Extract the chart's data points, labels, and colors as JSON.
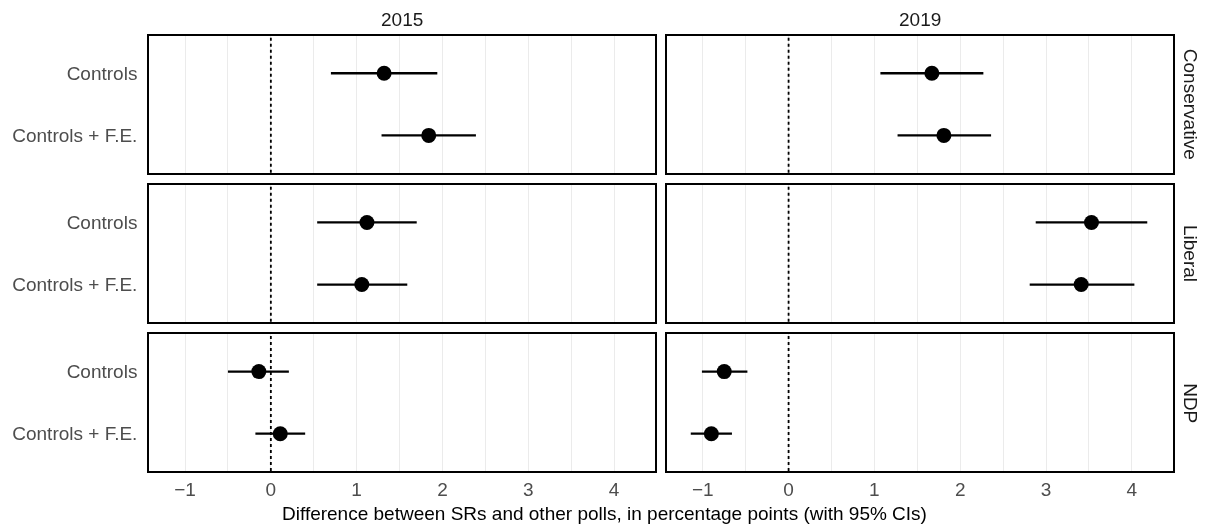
{
  "chart_data": [
    {
      "type": "scatter",
      "title": "2015",
      "categories": [
        "Controls",
        "Controls + F.E."
      ],
      "values": [
        1.32,
        1.84
      ],
      "errors": [
        [
          0.7,
          1.94
        ],
        [
          1.29,
          2.39
        ]
      ],
      "color": "#000000",
      "orientation": "horizontal",
      "marker": "circle",
      "xlim": [
        -1.42,
        4.48
      ],
      "xticks": [
        -1,
        -0.5,
        0,
        0.5,
        1,
        1.5,
        2,
        2.5,
        3,
        3.5,
        4
      ],
      "grid": "x",
      "ref_lines": [
        {
          "axis": "x",
          "value": 0,
          "color": "#000000",
          "line_style": "dotted"
        }
      ],
      "tick_labels": "y"
    },
    {
      "type": "scatter",
      "title": "2019",
      "ylabel": "Conservative",
      "categories": [
        "Controls",
        "Controls + F.E."
      ],
      "values": [
        1.67,
        1.81
      ],
      "errors": [
        [
          1.07,
          2.27
        ],
        [
          1.27,
          2.36
        ]
      ],
      "color": "#000000",
      "orientation": "horizontal",
      "marker": "circle",
      "xlim": [
        -1.42,
        4.48
      ],
      "xticks": [
        -1,
        -0.5,
        0,
        0.5,
        1,
        1.5,
        2,
        2.5,
        3,
        3.5,
        4
      ],
      "grid": "x",
      "ref_lines": [
        {
          "axis": "x",
          "value": 0,
          "color": "#000000",
          "line_style": "dotted"
        }
      ],
      "tick_labels": false
    },
    {
      "type": "scatter",
      "categories": [
        "Controls",
        "Controls + F.E."
      ],
      "values": [
        1.12,
        1.06
      ],
      "errors": [
        [
          0.54,
          1.7
        ],
        [
          0.54,
          1.59
        ]
      ],
      "color": "#000000",
      "orientation": "horizontal",
      "marker": "circle",
      "xlim": [
        -1.42,
        4.48
      ],
      "xticks": [
        -1,
        -0.5,
        0,
        0.5,
        1,
        1.5,
        2,
        2.5,
        3,
        3.5,
        4
      ],
      "grid": "x",
      "ref_lines": [
        {
          "axis": "x",
          "value": 0,
          "color": "#000000",
          "line_style": "dotted"
        }
      ],
      "tick_labels": "y"
    },
    {
      "type": "scatter",
      "ylabel": "Liberal",
      "categories": [
        "Controls",
        "Controls + F.E."
      ],
      "values": [
        3.53,
        3.41
      ],
      "errors": [
        [
          2.88,
          4.18
        ],
        [
          2.81,
          4.03
        ]
      ],
      "color": "#000000",
      "orientation": "horizontal",
      "marker": "circle",
      "xlim": [
        -1.42,
        4.48
      ],
      "xticks": [
        -1,
        -0.5,
        0,
        0.5,
        1,
        1.5,
        2,
        2.5,
        3,
        3.5,
        4
      ],
      "grid": "x",
      "ref_lines": [
        {
          "axis": "x",
          "value": 0,
          "color": "#000000",
          "line_style": "dotted"
        }
      ],
      "tick_labels": false
    },
    {
      "type": "scatter",
      "xlabel": "Difference between SRs and other polls, in percentage points (with 95% CIs)",
      "categories": [
        "Controls",
        "Controls + F.E."
      ],
      "values": [
        -0.14,
        0.11
      ],
      "errors": [
        [
          -0.5,
          0.21
        ],
        [
          -0.18,
          0.4
        ]
      ],
      "color": "#000000",
      "orientation": "horizontal",
      "marker": "circle",
      "xlim": [
        -1.42,
        4.48
      ],
      "xticks": [
        {
          "value": -1,
          "label": "−1"
        },
        {
          "value": -0.5,
          "label": null
        },
        0,
        {
          "value": 0.5,
          "label": null
        },
        1,
        {
          "value": 1.5,
          "label": null
        },
        2,
        {
          "value": 2.5,
          "label": null
        },
        3,
        {
          "value": 3.5,
          "label": null
        },
        4
      ],
      "grid": "x",
      "ref_lines": [
        {
          "axis": "x",
          "value": 0,
          "color": "#000000",
          "line_style": "dotted"
        }
      ]
    },
    {
      "type": "scatter",
      "ylabel": "NDP",
      "categories": [
        "Controls",
        "Controls + F.E."
      ],
      "values": [
        -0.75,
        -0.9
      ],
      "errors": [
        [
          -1.01,
          -0.48
        ],
        [
          -1.14,
          -0.66
        ]
      ],
      "color": "#000000",
      "orientation": "horizontal",
      "marker": "circle",
      "xlim": [
        -1.42,
        4.48
      ],
      "xticks": [
        {
          "value": -1,
          "label": "−1"
        },
        {
          "value": -0.5,
          "label": null
        },
        0,
        {
          "value": 0.5,
          "label": null
        },
        1,
        {
          "value": 1.5,
          "label": null
        },
        2,
        {
          "value": 2.5,
          "label": null
        },
        3,
        {
          "value": 3.5,
          "label": null
        },
        4
      ],
      "grid": "x",
      "ref_lines": [
        {
          "axis": "x",
          "value": 0,
          "color": "#000000",
          "line_style": "dotted"
        }
      ],
      "tick_labels": "x"
    }
  ]
}
